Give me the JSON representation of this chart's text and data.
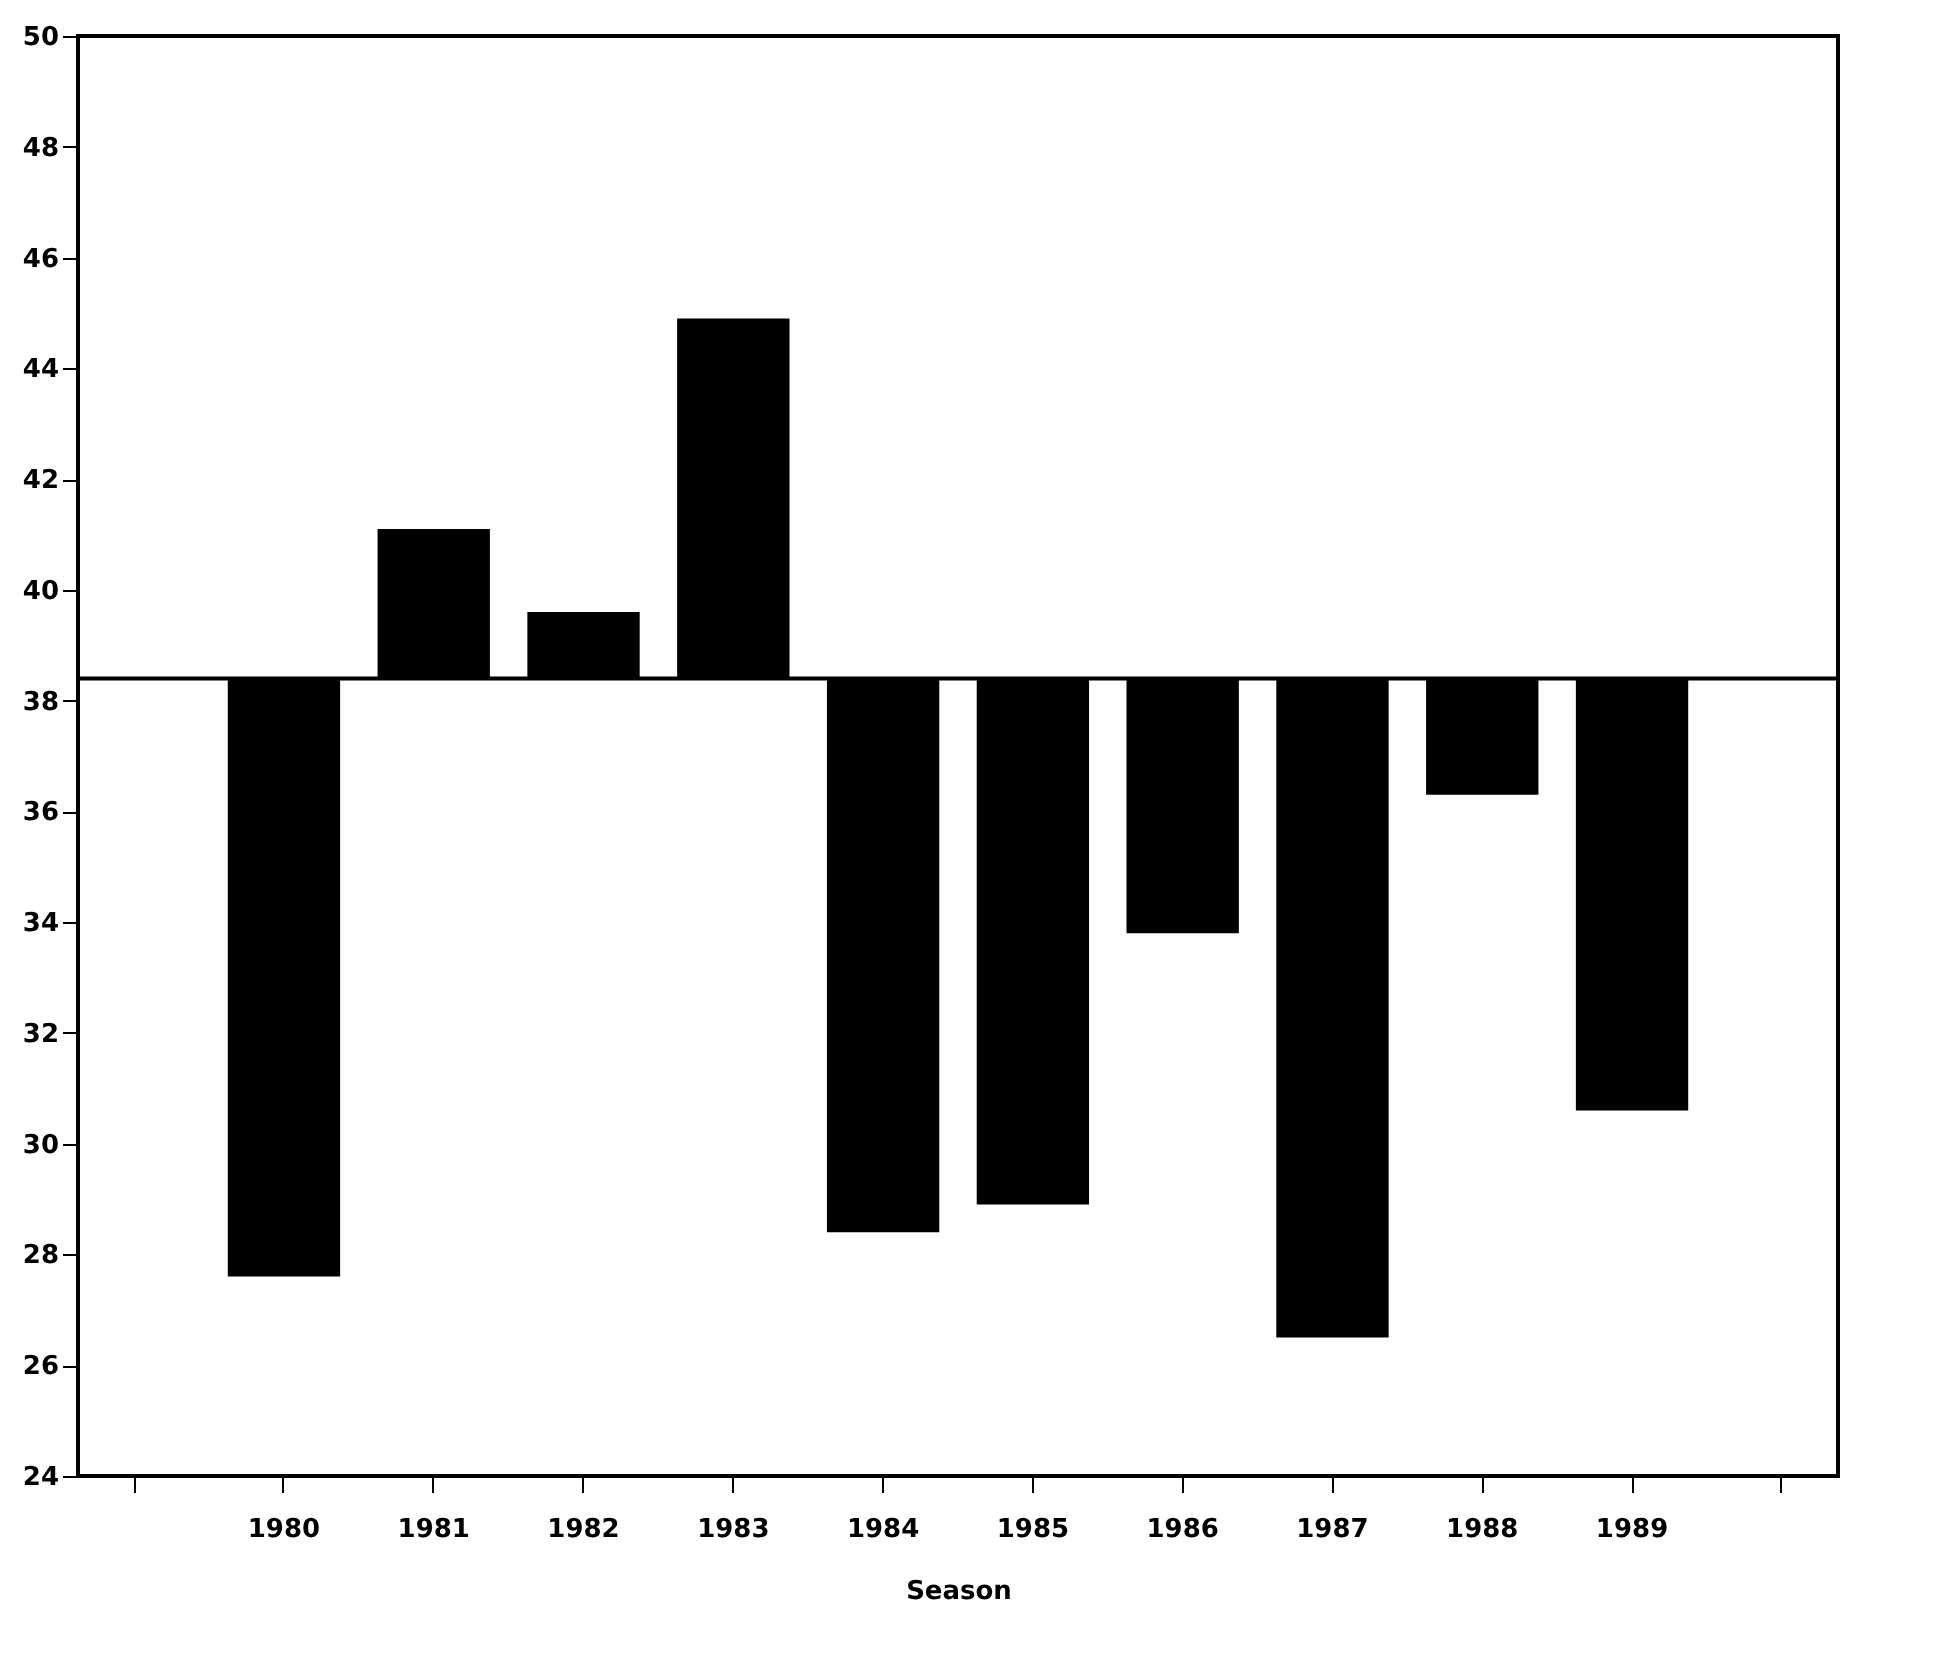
{
  "chart_data": {
    "type": "bar",
    "xlabel": "Season",
    "categories": [
      null,
      "1980",
      "1981",
      "1982",
      "1983",
      "1984",
      "1985",
      "1986",
      "1987",
      "1988",
      "1989",
      null
    ],
    "base": [
      null,
      38.4,
      38.4,
      38.4,
      38.4,
      38.4,
      38.4,
      38.4,
      38.4,
      38.4,
      38.4,
      null
    ],
    "values": [
      null,
      -10.8,
      2.7,
      1.2,
      6.5,
      -10.0,
      -9.5,
      -4.6,
      -11.9,
      -2.1,
      -7.8,
      null
    ],
    "color": "#000000",
    "ylim": [
      24,
      50
    ],
    "yticks": [
      24,
      26,
      28,
      30,
      32,
      34,
      36,
      38,
      40,
      42,
      44,
      46,
      48,
      50
    ],
    "ref_lines": [
      {
        "axis": "y",
        "value": 38.4,
        "color": "#000000"
      }
    ],
    "grid": false
  }
}
